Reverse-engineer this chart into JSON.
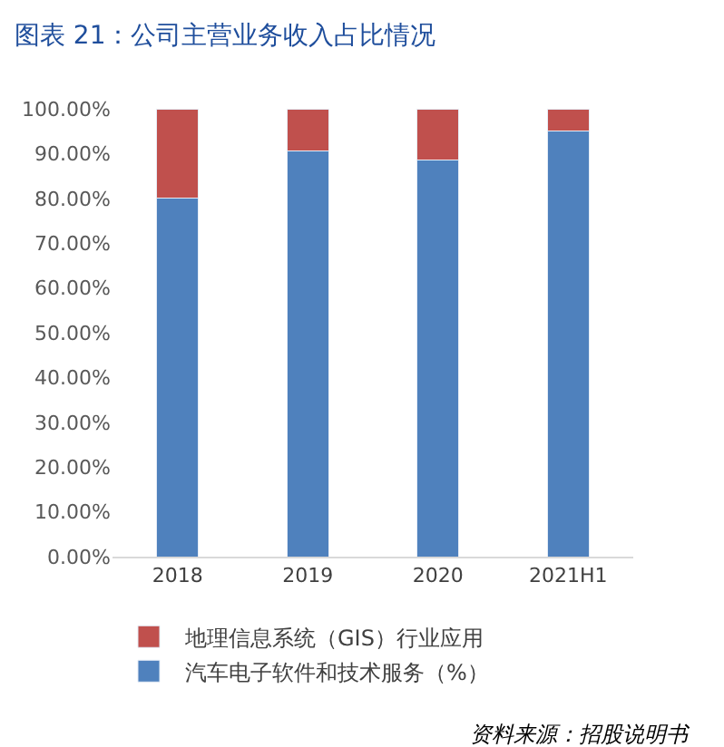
{
  "chart_data": {
    "type": "bar",
    "stacked": true,
    "title": "图表 21：公司主营业务收入占比情况",
    "categories": [
      "2018",
      "2019",
      "2020",
      "2021H1"
    ],
    "series": [
      {
        "name": "汽车电子软件和技术服务（%）",
        "color": "#4f81bd",
        "values": [
          80,
          90.5,
          88.5,
          95
        ]
      },
      {
        "name": "地理信息系统（GIS）行业应用",
        "color": "#c0504d",
        "values": [
          20,
          9.5,
          11.5,
          5
        ]
      }
    ],
    "ylim": [
      0,
      100
    ],
    "yticks": [
      {
        "value": 0,
        "label": "0.00%"
      },
      {
        "value": 10,
        "label": "10.00%"
      },
      {
        "value": 20,
        "label": "20.00%"
      },
      {
        "value": 30,
        "label": "30.00%"
      },
      {
        "value": 40,
        "label": "40.00%"
      },
      {
        "value": 50,
        "label": "50.00%"
      },
      {
        "value": 60,
        "label": "60.00%"
      },
      {
        "value": 70,
        "label": "70.00%"
      },
      {
        "value": 80,
        "label": "80.00%"
      },
      {
        "value": 90,
        "label": "90.00%"
      },
      {
        "value": 100,
        "label": "100.00%"
      }
    ],
    "legend": "bottom",
    "annotations": [
      "资料来源：招股说明书"
    ]
  }
}
